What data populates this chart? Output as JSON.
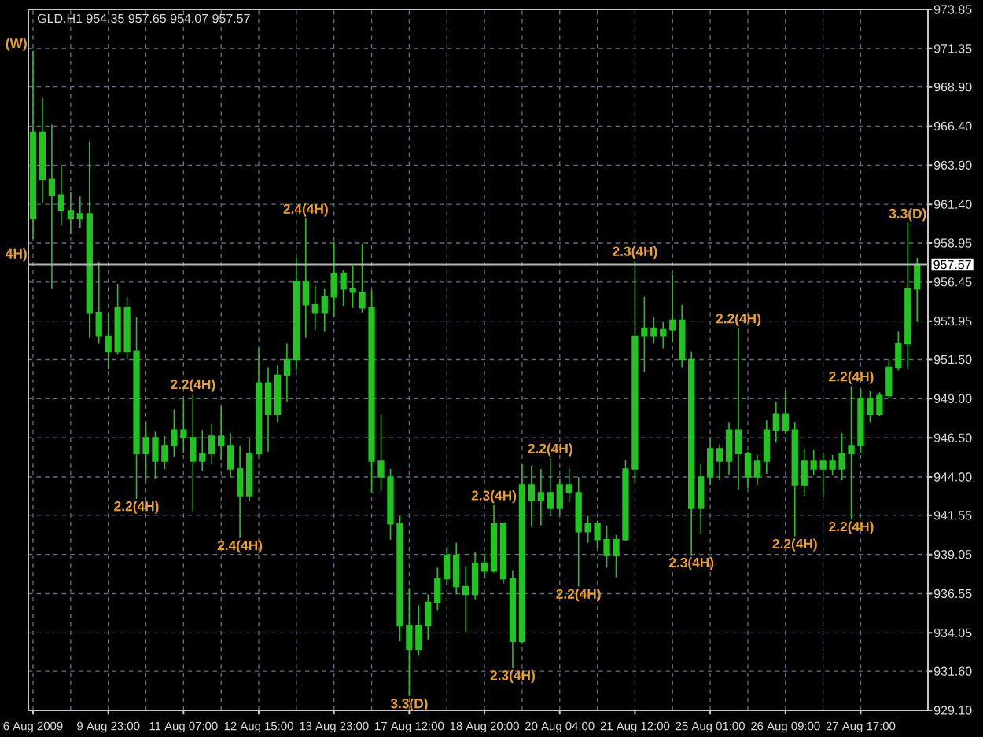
{
  "chart_data": {
    "type": "candlestick",
    "title": "GLD.H1 954.35 957.65 954.07 957.57",
    "categories": [
      "6 Aug 2009",
      null,
      null,
      null,
      null,
      null,
      null,
      null,
      "9 Aug 23:00",
      null,
      null,
      null,
      null,
      null,
      null,
      null,
      "11 Aug 07:00",
      null,
      null,
      null,
      null,
      null,
      null,
      null,
      "12 Aug 15:00",
      null,
      null,
      null,
      null,
      null,
      null,
      null,
      "13 Aug 23:00",
      null,
      null,
      null,
      null,
      null,
      null,
      null,
      "17 Aug 12:00",
      null,
      null,
      null,
      null,
      null,
      null,
      null,
      "18 Aug 20:00",
      null,
      null,
      null,
      null,
      null,
      null,
      null,
      "20 Aug 04:00",
      null,
      null,
      null,
      null,
      null,
      null,
      null,
      "21 Aug 12:00",
      null,
      null,
      null,
      null,
      null,
      null,
      null,
      "25 Aug 01:00",
      null,
      null,
      null,
      null,
      null,
      null,
      null,
      "26 Aug 09:00",
      null,
      null,
      null,
      null,
      null,
      null,
      null,
      "27 Aug 17:00",
      null,
      null,
      null,
      null,
      null,
      null
    ],
    "ohlc": [
      [
        960.5,
        971.2,
        959.2,
        966.0
      ],
      [
        966.0,
        968.2,
        961.5,
        963.0
      ],
      [
        963.0,
        966.5,
        956.0,
        962.0
      ],
      [
        962.0,
        963.9,
        960.1,
        961.0
      ],
      [
        961.0,
        962.2,
        959.5,
        960.5
      ],
      [
        960.5,
        961.9,
        959.9,
        960.8
      ],
      [
        960.8,
        965.4,
        952.9,
        954.5
      ],
      [
        954.5,
        957.7,
        952.5,
        953.0
      ],
      [
        953.0,
        954.5,
        950.9,
        952.0
      ],
      [
        952.0,
        956.3,
        951.8,
        954.8
      ],
      [
        954.8,
        955.5,
        951.5,
        952.0
      ],
      [
        952.0,
        954.2,
        942.6,
        945.5
      ],
      [
        945.5,
        947.5,
        943.8,
        946.5
      ],
      [
        946.5,
        946.9,
        943.9,
        945.0
      ],
      [
        945.0,
        946.6,
        944.5,
        946.0
      ],
      [
        946.0,
        948.3,
        945.3,
        947.0
      ],
      [
        947.0,
        949.0,
        945.5,
        946.5
      ],
      [
        946.5,
        949.3,
        941.8,
        945.0
      ],
      [
        945.0,
        947.0,
        944.4,
        945.5
      ],
      [
        945.5,
        947.4,
        944.8,
        946.6
      ],
      [
        946.6,
        948.5,
        945.1,
        946.0
      ],
      [
        946.0,
        946.8,
        944.0,
        944.5
      ],
      [
        944.5,
        946.0,
        940.1,
        942.8
      ],
      [
        942.8,
        946.5,
        942.5,
        945.5
      ],
      [
        945.5,
        952.2,
        945.4,
        950.0
      ],
      [
        950.0,
        951.0,
        945.6,
        948.0
      ],
      [
        948.0,
        951.1,
        947.5,
        950.5
      ],
      [
        950.5,
        952.5,
        948.8,
        951.5
      ],
      [
        951.5,
        958.0,
        950.8,
        956.5
      ],
      [
        956.5,
        960.5,
        952.9,
        955.0
      ],
      [
        955.0,
        956.2,
        953.4,
        954.5
      ],
      [
        954.5,
        956.0,
        953.3,
        955.5
      ],
      [
        955.5,
        959.0,
        954.2,
        957.0
      ],
      [
        957.0,
        957.2,
        954.9,
        956.0
      ],
      [
        956.0,
        957.5,
        954.8,
        955.8
      ],
      [
        955.8,
        958.9,
        954.5,
        954.8
      ],
      [
        954.8,
        955.9,
        943.0,
        945.0
      ],
      [
        945.0,
        948.0,
        943.1,
        944.0
      ],
      [
        944.0,
        944.5,
        940.0,
        941.0
      ],
      [
        941.0,
        941.5,
        933.5,
        934.5
      ],
      [
        934.5,
        936.9,
        930.0,
        933.0
      ],
      [
        933.0,
        935.8,
        932.6,
        934.5
      ],
      [
        934.5,
        936.5,
        933.6,
        936.0
      ],
      [
        936.0,
        938.2,
        935.5,
        937.5
      ],
      [
        937.5,
        939.5,
        937.1,
        939.0
      ],
      [
        939.0,
        939.8,
        936.5,
        937.0
      ],
      [
        937.0,
        938.3,
        934.1,
        936.5
      ],
      [
        936.5,
        939.2,
        936.2,
        938.5
      ],
      [
        938.5,
        939.1,
        937.5,
        938.0
      ],
      [
        938.0,
        942.2,
        937.9,
        941.0
      ],
      [
        941.0,
        941.1,
        937.2,
        937.5
      ],
      [
        937.5,
        938.0,
        931.8,
        933.5
      ],
      [
        933.5,
        944.8,
        933.4,
        943.5
      ],
      [
        943.5,
        944.7,
        940.8,
        942.5
      ],
      [
        942.5,
        944.5,
        940.9,
        943.0
      ],
      [
        943.0,
        945.2,
        941.5,
        942.0
      ],
      [
        942.0,
        943.9,
        941.6,
        943.5
      ],
      [
        943.5,
        944.6,
        942.5,
        943.0
      ],
      [
        943.0,
        944.0,
        937.0,
        940.5
      ],
      [
        940.5,
        941.5,
        939.8,
        941.0
      ],
      [
        941.0,
        941.2,
        939.5,
        940.0
      ],
      [
        940.0,
        940.9,
        938.2,
        939.0
      ],
      [
        939.0,
        940.3,
        937.6,
        940.0
      ],
      [
        940.0,
        945.1,
        939.9,
        944.5
      ],
      [
        944.5,
        957.8,
        943.6,
        953.0
      ],
      [
        953.0,
        955.5,
        950.7,
        953.5
      ],
      [
        953.5,
        954.2,
        952.5,
        953.0
      ],
      [
        953.0,
        953.9,
        952.2,
        953.4
      ],
      [
        953.4,
        956.9,
        952.6,
        954.0
      ],
      [
        954.0,
        955.0,
        951.0,
        951.5
      ],
      [
        951.5,
        952.0,
        939.0,
        942.0
      ],
      [
        942.0,
        944.8,
        940.4,
        944.0
      ],
      [
        944.0,
        946.5,
        943.5,
        945.8
      ],
      [
        945.8,
        946.1,
        943.8,
        945.0
      ],
      [
        945.0,
        947.5,
        944.1,
        947.0
      ],
      [
        947.0,
        953.5,
        943.2,
        945.5
      ],
      [
        945.5,
        945.6,
        943.3,
        944.0
      ],
      [
        944.0,
        945.4,
        943.5,
        945.0
      ],
      [
        945.0,
        947.6,
        944.2,
        947.0
      ],
      [
        947.0,
        948.8,
        946.2,
        948.0
      ],
      [
        948.0,
        949.5,
        946.8,
        947.0
      ],
      [
        947.0,
        947.5,
        940.2,
        943.5
      ],
      [
        943.5,
        945.8,
        942.8,
        945.0
      ],
      [
        945.0,
        945.7,
        944.1,
        944.5
      ],
      [
        944.5,
        945.5,
        942.7,
        945.0
      ],
      [
        945.0,
        945.4,
        944.1,
        944.5
      ],
      [
        944.5,
        946.8,
        943.8,
        945.5
      ],
      [
        945.5,
        949.8,
        941.3,
        946.0
      ],
      [
        946.0,
        949.6,
        945.5,
        949.0
      ],
      [
        949.0,
        949.5,
        947.5,
        948.0
      ],
      [
        948.0,
        949.4,
        947.9,
        949.2
      ],
      [
        949.2,
        951.5,
        949.0,
        951.0
      ],
      [
        951.0,
        953.3,
        950.8,
        952.5
      ],
      [
        952.5,
        960.2,
        950.9,
        956.0
      ],
      [
        956.0,
        958.0,
        953.9,
        957.57
      ]
    ],
    "color": "#22c422",
    "ylim": [
      929.1,
      973.85
    ],
    "yticks": [
      {
        "value": 929.1,
        "label": "929.10"
      },
      {
        "value": 931.6,
        "label": "931.60"
      },
      934.05,
      936.55,
      939.05,
      941.55,
      {
        "value": 944,
        "label": "944.00"
      },
      {
        "value": 946.5,
        "label": "946.50"
      },
      {
        "value": 949,
        "label": "949.00"
      },
      {
        "value": 951.5,
        "label": "951.50"
      },
      953.95,
      956.45,
      958.95,
      {
        "value": 961.4,
        "label": "961.40"
      },
      {
        "value": 963.9,
        "label": "963.90"
      },
      {
        "value": 966.4,
        "label": "966.40"
      },
      {
        "value": 968.9,
        "label": "968.90"
      },
      971.35,
      973.85
    ],
    "grid": true,
    "ref_lines": [
      {
        "axis": "y",
        "value": 957.57,
        "label": "957.57",
        "color": "#b4b4b4"
      }
    ],
    "annotations": [
      "(W)",
      "4H)",
      {
        "text": "2.2(4H)",
        "y": 942.6
      },
      {
        "text": "2.2(4H)",
        "y": 949.3
      },
      {
        "text": "2.4(4H)",
        "y": 940.1
      },
      {
        "text": "2.4(4H)",
        "y": 960.5
      },
      {
        "text": "3.3(D)",
        "y": 930.0
      },
      {
        "text": "2.3(4H)",
        "y": 942.2
      },
      {
        "text": "2.3(4H)",
        "y": 931.8
      },
      {
        "text": "2.2(4H)",
        "y": 945.2
      },
      {
        "text": "2.2(4H)",
        "y": 937.0
      },
      {
        "text": "2.3(4H)",
        "y": 957.8
      },
      {
        "text": "2.3(4H)",
        "y": 939.0
      },
      {
        "text": "2.2(4H)",
        "y": 953.5
      },
      {
        "text": "2.2(4H)",
        "y": 940.2
      },
      {
        "text": "2.2(4H)",
        "y": 941.3
      },
      {
        "text": "2.2(4H)",
        "y": 949.8
      },
      {
        "text": "3.3(D)",
        "y": 960.2
      }
    ]
  }
}
